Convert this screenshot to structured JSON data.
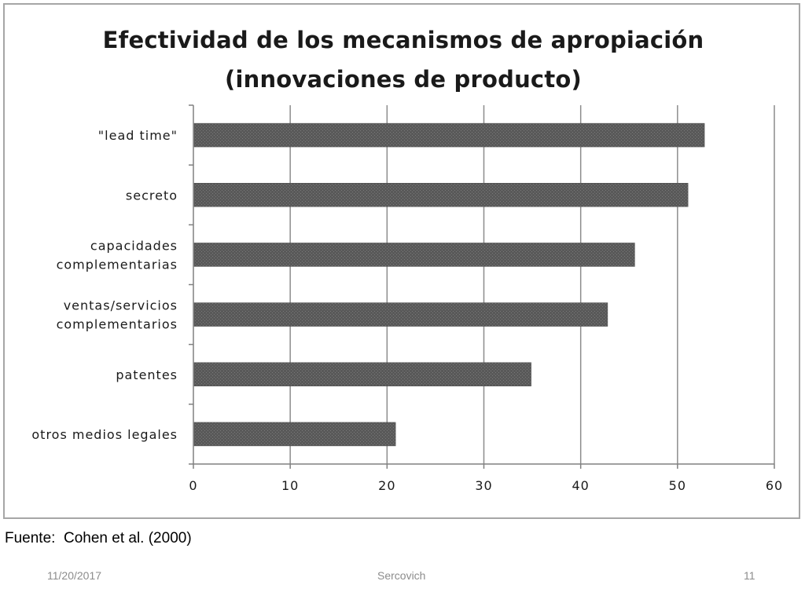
{
  "chart_data": {
    "type": "bar",
    "orientation": "horizontal",
    "title": "Efectividad de los mecanismos de apropiación",
    "subtitle": "(innovaciones de producto)",
    "categories": [
      "\"lead time\"",
      "secreto",
      "capacidades complementarias",
      "ventas/servicios complementarios",
      "patentes",
      "otros medios legales"
    ],
    "category_lines": [
      [
        "\"lead time\""
      ],
      [
        "secreto"
      ],
      [
        "capacidades",
        "complementarias"
      ],
      [
        "ventas/servicios",
        "complementarios"
      ],
      [
        "patentes"
      ],
      [
        "otros medios legales"
      ]
    ],
    "values": [
      52.7,
      51,
      45.5,
      42.7,
      34.8,
      20.8
    ],
    "xlim": [
      0,
      60
    ],
    "xticks": [
      "0",
      "10",
      "20",
      "30",
      "40",
      "50",
      "60"
    ],
    "xlabel": "",
    "ylabel": "",
    "grid": "vertical",
    "legend": "none",
    "bar_color": "#595959",
    "grid_color": "#8c8c8c"
  },
  "source": "Fuente:  Cohen et al. (2000)",
  "footer": {
    "date": "11/20/2017",
    "author": "Sercovich",
    "page": "11"
  }
}
